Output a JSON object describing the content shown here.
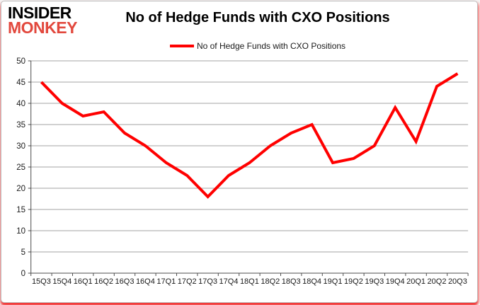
{
  "header": {
    "logo": {
      "line1": "INSIDER",
      "line2": "MONKEY",
      "line2_color": "#e2483d"
    },
    "title": "No of Hedge Funds with CXO Positions",
    "legend": {
      "label": "No of Hedge Funds with CXO Positions",
      "marker_color": "#ff0000"
    }
  },
  "chart_data": {
    "type": "line",
    "title": "No of Hedge Funds with CXO Positions",
    "categories": [
      "15Q3",
      "15Q4",
      "16Q1",
      "16Q2",
      "16Q3",
      "16Q4",
      "17Q1",
      "17Q2",
      "17Q3",
      "17Q4",
      "18Q1",
      "18Q2",
      "18Q3",
      "18Q4",
      "19Q1",
      "19Q2",
      "19Q3",
      "19Q4",
      "20Q1",
      "20Q2",
      "20Q3"
    ],
    "series": [
      {
        "name": "No of Hedge Funds with CXO Positions",
        "color": "#ff0000",
        "values": [
          45,
          40,
          37,
          38,
          33,
          30,
          26,
          23,
          18,
          23,
          26,
          30,
          33,
          35,
          26,
          27,
          30,
          39,
          31,
          44,
          47
        ]
      }
    ],
    "ylim": [
      0,
      50
    ],
    "ytick_step": 5,
    "yticks": [
      0,
      5,
      10,
      15,
      20,
      25,
      30,
      35,
      40,
      45,
      50
    ],
    "grid": "horizontal",
    "legend_position": "top",
    "xlabel": "",
    "ylabel": ""
  },
  "colors": {
    "background": "#ffffff",
    "gridline": "#a3a3a3",
    "axis": "#4d4d4d",
    "tick_label": "#1a1a1a",
    "series_line": "#ff0000"
  }
}
